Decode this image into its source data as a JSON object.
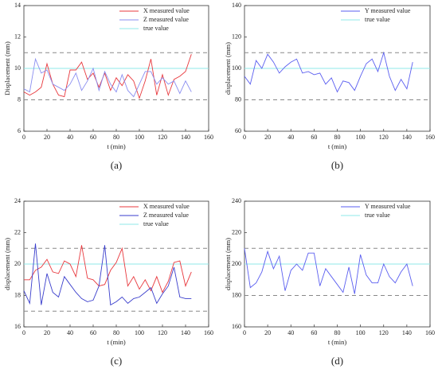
{
  "chart_data": [
    {
      "type": "line",
      "caption": "(a)",
      "xlabel": "t (min)",
      "ylabel": "Displacement (mm)",
      "x": [
        0,
        5,
        10,
        15,
        20,
        25,
        30,
        35,
        40,
        45,
        50,
        55,
        60,
        65,
        70,
        75,
        80,
        85,
        90,
        95,
        100,
        105,
        110,
        115,
        120,
        125,
        130,
        135,
        140,
        145
      ],
      "xlim": [
        0,
        160
      ],
      "xticks": [
        0,
        20,
        40,
        60,
        80,
        100,
        120,
        140,
        160
      ],
      "ylim": [
        6,
        14
      ],
      "yticks": [
        6,
        8,
        10,
        12,
        14
      ],
      "series": [
        {
          "name": "X measured value",
          "color": "#e8383d",
          "values": [
            8.5,
            8.3,
            8.5,
            8.8,
            10.3,
            9.0,
            8.3,
            8.2,
            9.9,
            9.9,
            10.4,
            9.3,
            9.7,
            8.8,
            9.7,
            8.6,
            9.4,
            8.9,
            9.6,
            9.2,
            8.1,
            9.2,
            10.6,
            8.3,
            9.6,
            8.3,
            9.3,
            9.5,
            9.8,
            10.9
          ]
        },
        {
          "name": "Z measured value",
          "color": "#8a8ef0",
          "values": [
            8.7,
            8.5,
            10.6,
            9.7,
            9.9,
            9.0,
            8.8,
            8.6,
            9.0,
            9.7,
            8.6,
            9.2,
            10.0,
            8.6,
            9.8,
            9.0,
            8.5,
            9.6,
            8.6,
            8.2,
            9.0,
            9.8,
            9.8,
            9.0,
            9.4,
            9.0,
            9.2,
            8.4,
            9.2,
            8.5
          ]
        }
      ],
      "true_value": {
        "name": "true value",
        "color": "#8fe8e8",
        "value": 10
      },
      "limits": [
        11,
        8
      ],
      "limit_color": "#888888",
      "legend": "top-right"
    },
    {
      "type": "line",
      "caption": "(b)",
      "xlabel": "t (min)",
      "ylabel": "displacement (mm)",
      "x": [
        0,
        5,
        10,
        15,
        20,
        25,
        30,
        35,
        40,
        45,
        50,
        55,
        60,
        65,
        70,
        75,
        80,
        85,
        90,
        95,
        100,
        105,
        110,
        115,
        120,
        125,
        130,
        135,
        140,
        145
      ],
      "xlim": [
        0,
        160
      ],
      "xticks": [
        0,
        20,
        40,
        60,
        80,
        100,
        120,
        140,
        160
      ],
      "ylim": [
        60,
        140
      ],
      "yticks": [
        60,
        80,
        100,
        120,
        140
      ],
      "series": [
        {
          "name": "Y measured value",
          "color": "#5a5ef0",
          "values": [
            95,
            90,
            105,
            100,
            109,
            104,
            97,
            101,
            104,
            106,
            97,
            98,
            96,
            97,
            90,
            94,
            85,
            92,
            91,
            86,
            95,
            103,
            106,
            98,
            110,
            95,
            86,
            93,
            87,
            104
          ]
        }
      ],
      "true_value": {
        "name": "true value",
        "color": "#8fe8e8",
        "value": 100
      },
      "limits": [
        110,
        80
      ],
      "limit_color": "#888888",
      "legend": "top-right"
    },
    {
      "type": "line",
      "caption": "(c)",
      "xlabel": "t (min)",
      "ylabel": "displacement (mm)",
      "x": [
        0,
        5,
        10,
        15,
        20,
        25,
        30,
        35,
        40,
        45,
        50,
        55,
        60,
        65,
        70,
        75,
        80,
        85,
        90,
        95,
        100,
        105,
        110,
        115,
        120,
        125,
        130,
        135,
        140,
        145
      ],
      "xlim": [
        0,
        160
      ],
      "xticks": [
        0,
        20,
        40,
        60,
        80,
        100,
        120,
        140,
        160
      ],
      "ylim": [
        16,
        24
      ],
      "yticks": [
        16,
        18,
        20,
        22,
        24
      ],
      "series": [
        {
          "name": "X measured value",
          "color": "#e8383d",
          "values": [
            19.0,
            19.0,
            19.6,
            19.8,
            20.3,
            19.5,
            19.4,
            20.2,
            20.0,
            19.2,
            21.2,
            19.1,
            19.0,
            18.6,
            18.7,
            19.6,
            20.1,
            21.0,
            18.6,
            19.2,
            18.4,
            19.0,
            18.3,
            19.2,
            18.2,
            18.9,
            20.1,
            20.2,
            18.6,
            19.5
          ]
        },
        {
          "name": "Z measured value",
          "color": "#3a3ecc",
          "values": [
            18.3,
            17.5,
            21.3,
            17.4,
            19.4,
            18.2,
            17.9,
            19.2,
            18.7,
            18.2,
            17.8,
            17.6,
            17.7,
            18.6,
            21.2,
            17.4,
            17.6,
            17.9,
            17.5,
            17.8,
            17.9,
            18.2,
            18.5,
            17.5,
            18.1,
            18.6,
            19.8,
            17.9,
            17.8,
            17.8
          ]
        }
      ],
      "true_value": {
        "name": "true value",
        "color": "#8fe8e8",
        "value": 20
      },
      "limits": [
        21,
        17
      ],
      "limit_color": "#888888",
      "legend": "top-right"
    },
    {
      "type": "line",
      "caption": "(d)",
      "xlabel": "t (min)",
      "ylabel": "displacement (mm)",
      "x": [
        0,
        5,
        10,
        15,
        20,
        25,
        30,
        35,
        40,
        45,
        50,
        55,
        60,
        65,
        70,
        75,
        80,
        85,
        90,
        95,
        100,
        105,
        110,
        115,
        120,
        125,
        130,
        135,
        140,
        145
      ],
      "xlim": [
        0,
        160
      ],
      "xticks": [
        0,
        20,
        40,
        60,
        80,
        100,
        120,
        140,
        160
      ],
      "ylim": [
        160,
        240
      ],
      "yticks": [
        160,
        180,
        200,
        220,
        240
      ],
      "series": [
        {
          "name": "Y measured value",
          "color": "#5a5ef0",
          "values": [
            210,
            185,
            188,
            195,
            208,
            197,
            205,
            183,
            196,
            200,
            196,
            207,
            207,
            186,
            197,
            192,
            187,
            182,
            198,
            181,
            206,
            193,
            188,
            188,
            200,
            192,
            188,
            195,
            200,
            186
          ]
        }
      ],
      "true_value": {
        "name": "true value",
        "color": "#8fe8e8",
        "value": 200
      },
      "limits": [
        210,
        180
      ],
      "limit_color": "#888888",
      "legend": "top-right"
    }
  ]
}
